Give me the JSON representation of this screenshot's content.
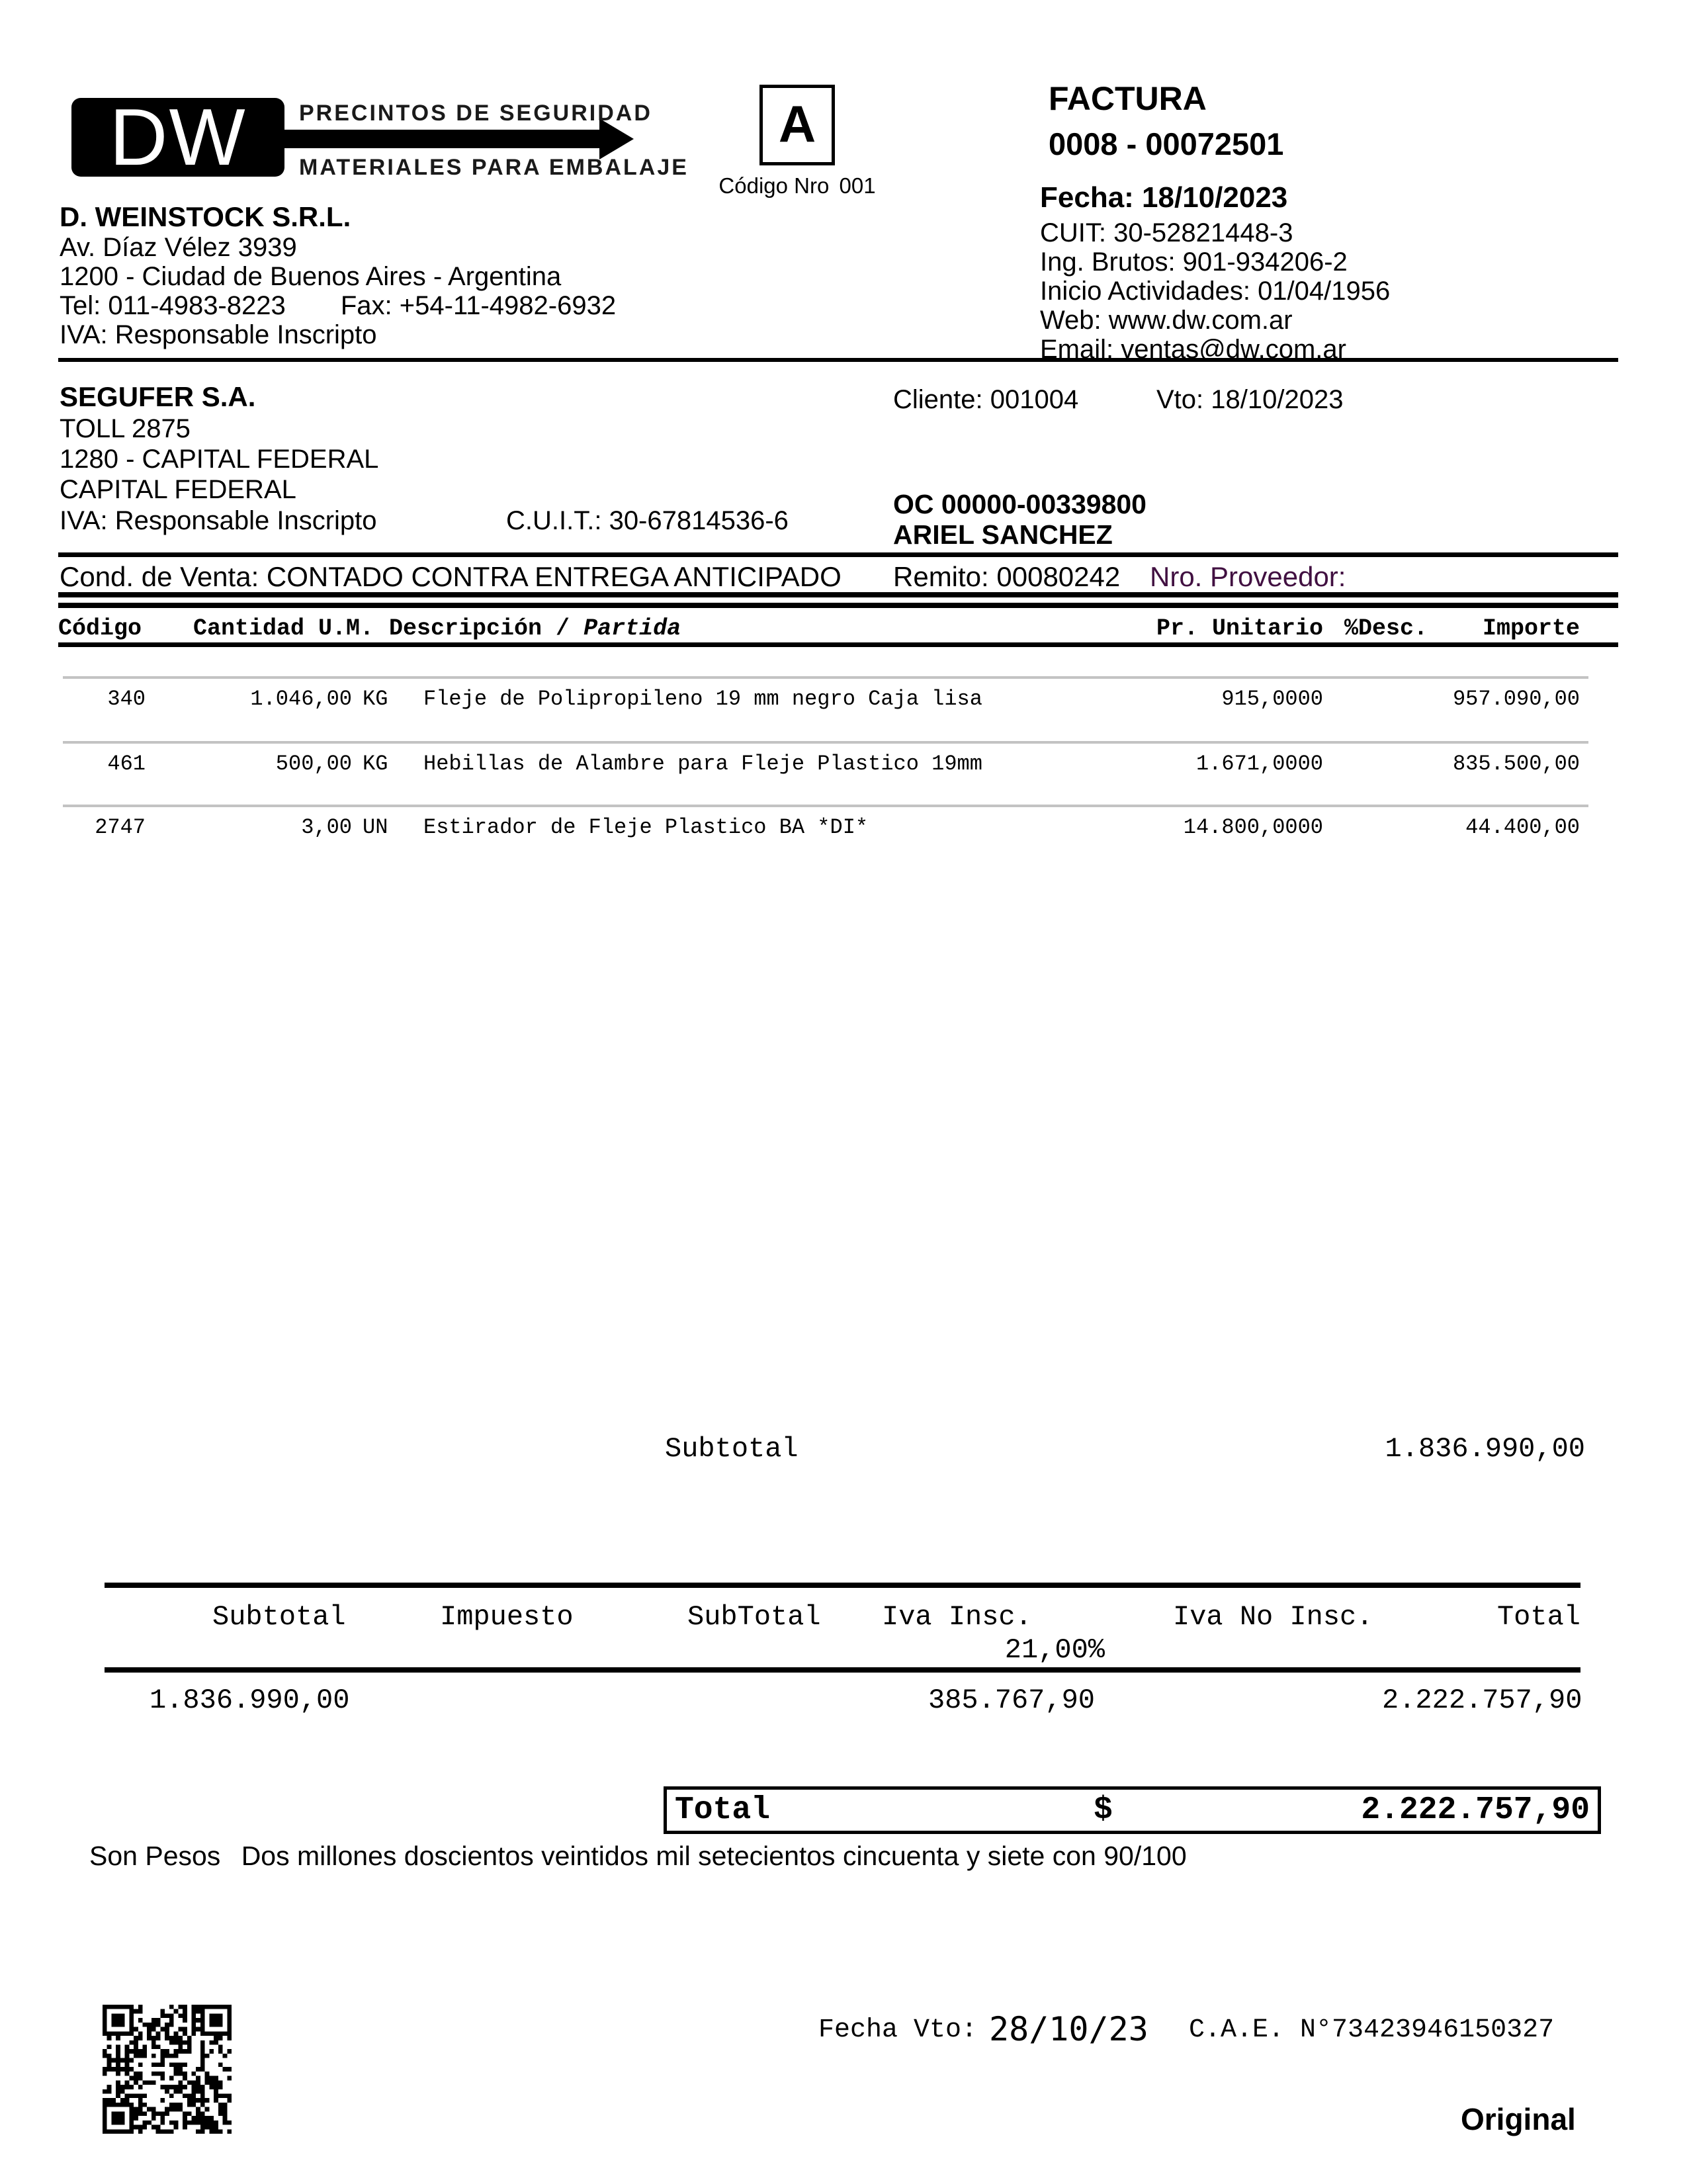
{
  "colors": {
    "accent_purple": "#411041",
    "row_divider_gray": "#c3c3c3",
    "ink": "#000000",
    "paper": "#ffffff"
  },
  "logo": {
    "monogram": "DW",
    "tagline_top": "PRECINTOS DE SEGURIDAD",
    "tagline_bottom": "MATERIALES PARA EMBALAJE"
  },
  "letter_box": {
    "letter": "A",
    "code_label": "Código Nro",
    "code_value": "001"
  },
  "company": {
    "name": "D. WEINSTOCK S.R.L.",
    "address": "Av. Díaz Vélez 3939",
    "city": "1200 - Ciudad de Buenos Aires - Argentina",
    "tel": "Tel: 011-4983-8223",
    "fax": "Fax: +54-11-4982-6932",
    "iva": "IVA: Responsable Inscripto"
  },
  "invoice": {
    "title": "FACTURA",
    "number": "0008 - 00072501",
    "fecha": "Fecha: 18/10/2023",
    "cuit": "CUIT: 30-52821448-3",
    "ing_brutos": "Ing. Brutos: 901-934206-2",
    "inicio_actividades": "Inicio Actividades: 01/04/1956",
    "web": "Web: www.dw.com.ar",
    "email": "Email: ventas@dw.com.ar"
  },
  "client": {
    "name": "SEGUFER S.A.",
    "address": "TOLL 2875",
    "zip_city": "1280 - CAPITAL FEDERAL",
    "city": "CAPITAL FEDERAL",
    "iva": "IVA: Responsable Inscripto",
    "cuit": "C.U.I.T.: 30-67814536-6",
    "cliente": "Cliente: 001004",
    "vto": "Vto: 18/10/2023",
    "oc": "OC 00000-00339800",
    "comprador": "ARIEL SANCHEZ",
    "cond_venta": "Cond. de Venta: CONTADO CONTRA ENTREGA ANTICIPADO",
    "remito": "Remito: 00080242",
    "nro_proveedor": "Nro. Proveedor:"
  },
  "items": {
    "headers": {
      "codigo": "Código",
      "cantidad_um": "Cantidad U.M.",
      "descripcion": "Descripción / ",
      "partida": "Partida",
      "pr_unitario": "Pr. Unitario",
      "desc": "%Desc.",
      "importe": "Importe"
    },
    "rows": [
      {
        "codigo": "340",
        "cantidad": "1.046,00",
        "um": "KG",
        "descripcion": "Fleje de Polipropileno 19 mm negro Caja lisa",
        "pr_unitario": "915,0000",
        "desc": "",
        "importe": "957.090,00"
      },
      {
        "codigo": "461",
        "cantidad": "500,00",
        "um": "KG",
        "descripcion": "Hebillas de Alambre para Fleje Plastico 19mm",
        "pr_unitario": "1.671,0000",
        "desc": "",
        "importe": "835.500,00"
      },
      {
        "codigo": "2747",
        "cantidad": "3,00",
        "um": "UN",
        "descripcion": "Estirador de Fleje Plastico BA *DI*",
        "pr_unitario": "14.800,0000",
        "desc": "",
        "importe": "44.400,00"
      }
    ]
  },
  "totals": {
    "subtotal_label": "Subtotal",
    "subtotal_value": "1.836.990,00"
  },
  "summary": {
    "headers": [
      "Subtotal",
      "Impuesto",
      "SubTotal",
      "Iva Insc.",
      "Iva No Insc.",
      "Total"
    ],
    "iva_rate": "21,00%",
    "subtotal": "1.836.990,00",
    "iva_insc": "385.767,90",
    "total": "2.222.757,90"
  },
  "total_box": {
    "label": "Total",
    "currency": "$",
    "value": "2.222.757,90"
  },
  "amount_in_words": {
    "prefix": "Son Pesos",
    "text": "Dos millones doscientos veintidos mil setecientos cincuenta y siete con 90/100"
  },
  "footer": {
    "fecha_vto_label": "Fecha Vto:",
    "fecha_vto_value": "28/10/23",
    "cae": "C.A.E. N°73423946150327",
    "copy_label": "Original"
  }
}
